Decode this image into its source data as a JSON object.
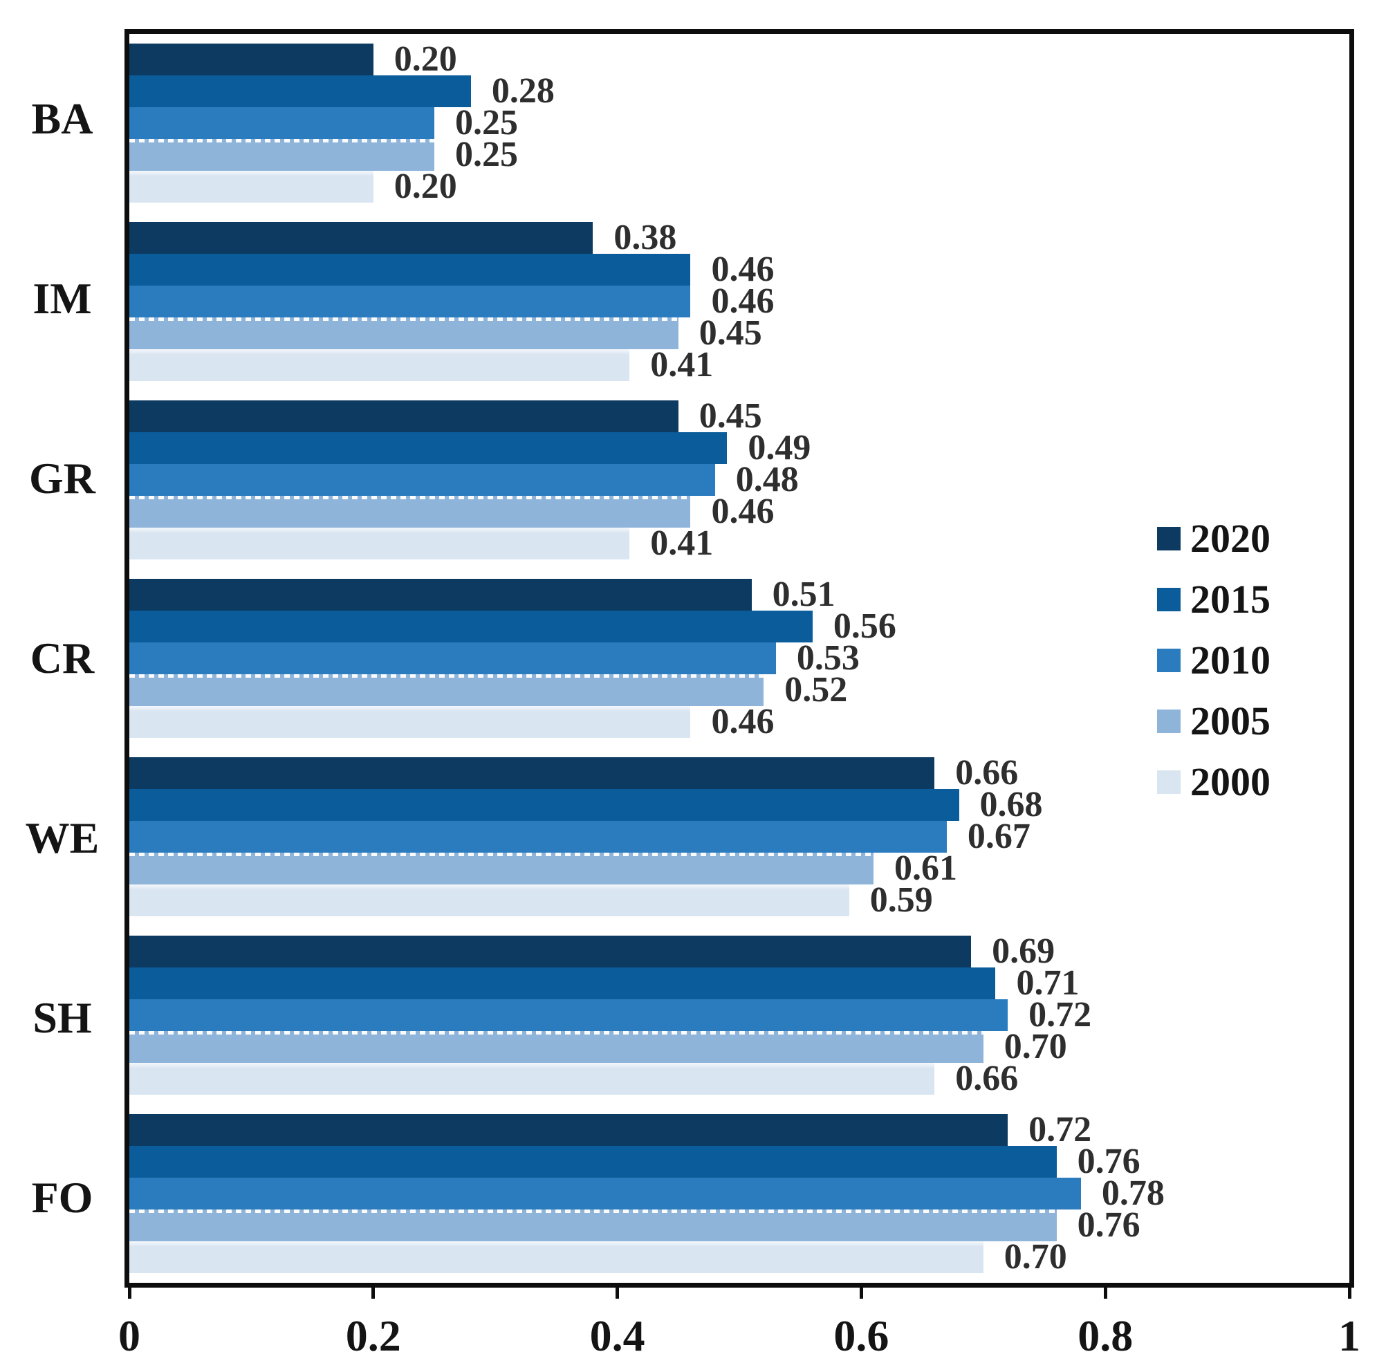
{
  "chart_data": {
    "type": "bar",
    "orientation": "horizontal",
    "title": "",
    "xlabel": "",
    "ylabel": "",
    "categories": [
      "BA",
      "IM",
      "GR",
      "CR",
      "WE",
      "SH",
      "FO"
    ],
    "series": [
      {
        "name": "2020",
        "color": "#0C3A60",
        "values": [
          0.2,
          0.38,
          0.45,
          0.51,
          0.66,
          0.69,
          0.72
        ]
      },
      {
        "name": "2015",
        "color": "#0B5C9B",
        "values": [
          0.28,
          0.46,
          0.49,
          0.56,
          0.68,
          0.71,
          0.76
        ]
      },
      {
        "name": "2010",
        "color": "#2A7CBE",
        "values": [
          0.25,
          0.46,
          0.48,
          0.53,
          0.67,
          0.72,
          0.78
        ]
      },
      {
        "name": "2005",
        "color": "#8FB4DA",
        "values": [
          0.25,
          0.45,
          0.46,
          0.52,
          0.61,
          0.7,
          0.76
        ]
      },
      {
        "name": "2000",
        "color": "#D9E5F1",
        "values": [
          0.2,
          0.41,
          0.41,
          0.46,
          0.59,
          0.66,
          0.7
        ]
      }
    ],
    "value_label_format": "two_decimals",
    "xlim": [
      0,
      1
    ],
    "x_ticks": [
      {
        "value": 0,
        "label": "0"
      },
      {
        "value": 0.2,
        "label": "0.2"
      },
      {
        "value": 0.4,
        "label": "0.4"
      },
      {
        "value": 0.6,
        "label": "0.6"
      },
      {
        "value": 0.8,
        "label": "0.8"
      },
      {
        "value": 1,
        "label": "1"
      }
    ],
    "legend": {
      "position": "inside-right",
      "entries": [
        "2020",
        "2015",
        "2010",
        "2005",
        "2000"
      ]
    },
    "grid": false,
    "plot_border": true,
    "colors": {
      "axis_and_border": "#0d0d0d",
      "value_label_text": "#2e2e2e",
      "axis_label_text": "#141414",
      "background": "#ffffff"
    }
  }
}
